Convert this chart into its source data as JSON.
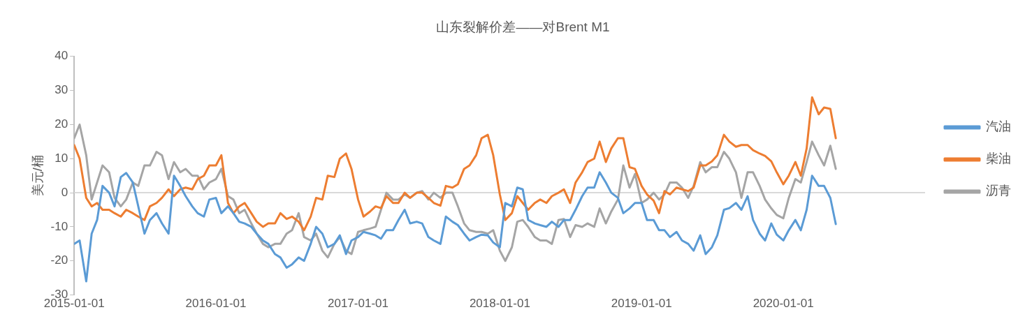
{
  "chart_data": {
    "type": "line",
    "title": "山东裂解价差——对Brent M1",
    "ylabel": "美元/桶",
    "x": [
      "2015-01-01",
      "2015-01-15",
      "2015-02-01",
      "2015-02-15",
      "2015-03-01",
      "2015-03-15",
      "2015-04-01",
      "2015-04-15",
      "2015-05-01",
      "2015-05-15",
      "2015-06-01",
      "2015-06-15",
      "2015-07-01",
      "2015-07-15",
      "2015-08-01",
      "2015-08-15",
      "2015-09-01",
      "2015-09-15",
      "2015-10-01",
      "2015-10-15",
      "2015-11-01",
      "2015-11-15",
      "2015-12-01",
      "2015-12-15",
      "2016-01-01",
      "2016-01-15",
      "2016-02-01",
      "2016-02-15",
      "2016-03-01",
      "2016-03-15",
      "2016-04-01",
      "2016-04-15",
      "2016-05-01",
      "2016-05-15",
      "2016-06-01",
      "2016-06-15",
      "2016-07-01",
      "2016-07-15",
      "2016-08-01",
      "2016-08-15",
      "2016-09-01",
      "2016-09-15",
      "2016-10-01",
      "2016-10-15",
      "2016-11-01",
      "2016-11-15",
      "2016-12-01",
      "2016-12-15",
      "2017-01-01",
      "2017-01-15",
      "2017-02-01",
      "2017-02-15",
      "2017-03-01",
      "2017-03-15",
      "2017-04-01",
      "2017-04-15",
      "2017-05-01",
      "2017-05-15",
      "2017-06-01",
      "2017-06-15",
      "2017-07-01",
      "2017-07-15",
      "2017-08-01",
      "2017-08-15",
      "2017-09-01",
      "2017-09-15",
      "2017-10-01",
      "2017-10-15",
      "2017-11-01",
      "2017-11-15",
      "2017-12-01",
      "2017-12-15",
      "2018-01-01",
      "2018-01-15",
      "2018-02-01",
      "2018-02-15",
      "2018-03-01",
      "2018-03-15",
      "2018-04-01",
      "2018-04-15",
      "2018-05-01",
      "2018-05-15",
      "2018-06-01",
      "2018-06-15",
      "2018-07-01",
      "2018-07-15",
      "2018-08-01",
      "2018-08-15",
      "2018-09-01",
      "2018-09-15",
      "2018-10-01",
      "2018-10-15",
      "2018-11-01",
      "2018-11-15",
      "2018-12-01",
      "2018-12-15",
      "2019-01-01",
      "2019-01-15",
      "2019-02-01",
      "2019-02-15",
      "2019-03-01",
      "2019-03-15",
      "2019-04-01",
      "2019-04-15",
      "2019-05-01",
      "2019-05-15",
      "2019-06-01",
      "2019-06-15",
      "2019-07-01",
      "2019-07-15",
      "2019-08-01",
      "2019-08-15",
      "2019-09-01",
      "2019-09-15",
      "2019-10-01",
      "2019-10-15",
      "2019-11-01",
      "2019-11-15",
      "2019-12-01",
      "2019-12-15",
      "2020-01-01",
      "2020-01-15",
      "2020-02-01",
      "2020-02-15",
      "2020-03-01",
      "2020-03-15",
      "2020-04-01",
      "2020-04-15",
      "2020-05-01",
      "2020-05-15"
    ],
    "series": [
      {
        "name": "汽油",
        "color": "#5b9bd5",
        "values": [
          -15,
          -14,
          -26,
          -12,
          -8,
          2,
          0,
          -4,
          4.6,
          5.8,
          3,
          -4,
          -12,
          -8,
          -6,
          -9,
          -12,
          5,
          2,
          -1,
          -4,
          -6,
          -7,
          -2,
          -1.5,
          -6,
          -4,
          -6,
          -8.5,
          -9,
          -10,
          -12,
          -14,
          -15,
          -18,
          -19,
          -22,
          -21,
          -19,
          -20,
          -15,
          -10,
          -12,
          -16,
          -15,
          -12.5,
          -18,
          -14,
          -13,
          -11.5,
          -12,
          -12.5,
          -13.5,
          -11,
          -11,
          -8,
          -5,
          -9,
          -8.5,
          -9,
          -13,
          -14,
          -15,
          -7,
          -8.5,
          -9.5,
          -12,
          -14,
          -13,
          -12.3,
          -12.5,
          -14.6,
          -16,
          -3,
          -4,
          1.5,
          1,
          -8,
          -9,
          -9.5,
          -10,
          -8.5,
          -10,
          -8,
          -8,
          -5,
          -1,
          1.5,
          1.5,
          6,
          3,
          0,
          -1.5,
          -6,
          -4.6,
          -3,
          -3,
          -8,
          -8,
          -11,
          -11,
          -13,
          -11.5,
          -14,
          -15,
          -17,
          -12.5,
          -18,
          -16,
          -12.5,
          -5,
          -4.5,
          -3,
          -5,
          -1,
          -8,
          -12,
          -14,
          -9,
          -12.3,
          -14,
          -11,
          -8,
          -11,
          -5,
          5,
          2,
          2,
          -1.5,
          -9.2
        ]
      },
      {
        "name": "柴油",
        "color": "#ed7d31",
        "values": [
          14,
          10,
          -1.5,
          -4,
          -3,
          -5,
          -5,
          -6,
          -7,
          -5,
          -6,
          -7,
          -8,
          -4,
          -3,
          -1.5,
          1,
          -1,
          1,
          1.5,
          1,
          4,
          5,
          8,
          8,
          11,
          -3,
          -6,
          -4,
          -3,
          -6,
          -8.5,
          -10,
          -9,
          -9,
          -6,
          -7.7,
          -7,
          -8.5,
          -11,
          -7,
          -1.5,
          -2,
          5,
          4.6,
          10,
          11.5,
          7,
          -2,
          -7,
          -5.5,
          -4,
          -4.5,
          -1,
          -3,
          -3,
          0,
          -1.5,
          0,
          0,
          -1.5,
          -3,
          -3.8,
          2,
          1.5,
          2.5,
          7,
          8,
          11,
          16,
          17,
          11,
          -0.5,
          -8,
          -6,
          -1,
          -3,
          -5,
          -3,
          -2,
          -3,
          -1,
          0,
          1,
          -3,
          3,
          6,
          9,
          10,
          15,
          9,
          13,
          16,
          16,
          7.5,
          7,
          2,
          -0.5,
          -2.3,
          -6,
          0.5,
          -0.5,
          1.5,
          1,
          0.5,
          1.5,
          8,
          8,
          9.2,
          11,
          17,
          15,
          13.5,
          14,
          14,
          12.5,
          11.5,
          10.8,
          9.2,
          6,
          2.5,
          5,
          9,
          5,
          13,
          28,
          23,
          25,
          24.6,
          16
        ]
      },
      {
        "name": "沥青",
        "color": "#a5a5a5",
        "values": [
          16,
          20,
          11,
          -2,
          3,
          8,
          6,
          -1.5,
          -4,
          -2,
          3,
          2,
          8,
          8,
          12,
          11,
          4,
          9,
          6,
          7,
          5,
          5,
          1,
          3,
          4,
          7,
          -1,
          -2,
          -6,
          -5,
          -9,
          -12,
          -15,
          -16,
          -15,
          -15,
          -12,
          -11,
          -6,
          -13,
          -14,
          -12,
          -17,
          -19,
          -15,
          -13,
          -17,
          -18,
          -11.5,
          -11,
          -10.5,
          -10,
          -5,
          0,
          -2,
          -2,
          -0.5,
          -1.5,
          0,
          0.5,
          -2,
          0,
          -1.5,
          0,
          0,
          -4,
          -9,
          -11,
          -11.5,
          -11.5,
          -12,
          -11,
          -17,
          -20,
          -16,
          -8.5,
          -8,
          -10,
          -13,
          -14,
          -14,
          -15,
          -8,
          -7.7,
          -13,
          -9.5,
          -10,
          -9,
          -10,
          -4.6,
          -9,
          -5.5,
          -2,
          8,
          1.5,
          5.5,
          -3,
          -2,
          0,
          -2,
          -0.5,
          3,
          3,
          1.5,
          -1.5,
          2,
          9,
          6,
          7.5,
          7.5,
          12,
          10,
          6,
          -1.5,
          6,
          6,
          2,
          -2,
          -4.6,
          -6.5,
          -7.5,
          -1.5,
          4,
          3,
          9,
          15,
          11,
          8,
          13.8,
          7
        ]
      }
    ],
    "xlim": [
      "2015-01-01",
      "2020-12-31"
    ],
    "xticks": [
      "2015-01-01",
      "2016-01-01",
      "2017-01-01",
      "2018-01-01",
      "2019-01-01",
      "2020-01-01"
    ],
    "ylim": [
      -30,
      40
    ],
    "yticks": [
      -30,
      -20,
      -10,
      0,
      10,
      20,
      30,
      40
    ],
    "ref_lines": [
      {
        "axis": "y",
        "value": 0,
        "color": "#d9d9d9"
      }
    ],
    "grid": false,
    "legend": "right",
    "marker": "none",
    "line_style": "solid"
  }
}
